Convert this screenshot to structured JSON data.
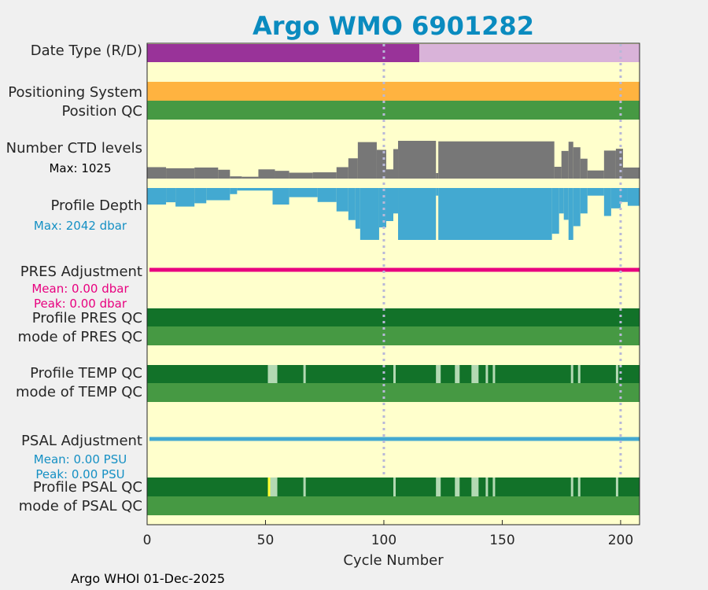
{
  "chart_data": {
    "type": "table",
    "title": "Argo WMO 6901282",
    "xlabel": "Cycle Number",
    "xlim": [
      0,
      208
    ],
    "x_ticks": [
      "0",
      "50",
      "100",
      "150",
      "200"
    ],
    "x_tick_values": [
      0,
      50,
      100,
      150,
      200
    ],
    "gridlines_x": [
      100,
      200
    ],
    "footer": "Argo WHOI 01-Dec-2025",
    "rows": [
      {
        "label": "Date Type (R/D)",
        "segments": [
          {
            "from": 0,
            "to": 115,
            "color": "#993399",
            "meaning": "R"
          },
          {
            "from": 115,
            "to": 208,
            "color": "#d9b3d9",
            "meaning": "D"
          }
        ]
      },
      {
        "label": "Positioning System",
        "segments": [
          {
            "from": 0,
            "to": 208,
            "color": "#ffb340"
          }
        ]
      },
      {
        "label": "Position QC",
        "segments": [
          {
            "from": 0,
            "to": 208,
            "color": "#469943"
          }
        ]
      },
      {
        "label": "Number CTD levels",
        "note": "Max: 1025",
        "max": 1025,
        "color": "#777777",
        "profile": [
          {
            "from": 0,
            "to": 8,
            "value": 310
          },
          {
            "from": 8,
            "to": 20,
            "value": 280
          },
          {
            "from": 20,
            "to": 30,
            "value": 300
          },
          {
            "from": 30,
            "to": 35,
            "value": 240
          },
          {
            "from": 35,
            "to": 40,
            "value": 60
          },
          {
            "from": 40,
            "to": 47,
            "value": 50
          },
          {
            "from": 47,
            "to": 54,
            "value": 250
          },
          {
            "from": 54,
            "to": 60,
            "value": 210
          },
          {
            "from": 60,
            "to": 70,
            "value": 160
          },
          {
            "from": 70,
            "to": 80,
            "value": 170
          },
          {
            "from": 80,
            "to": 85,
            "value": 310
          },
          {
            "from": 85,
            "to": 89,
            "value": 550
          },
          {
            "from": 89,
            "to": 97,
            "value": 990
          },
          {
            "from": 97,
            "to": 101,
            "value": 780
          },
          {
            "from": 101,
            "to": 104,
            "value": 250
          },
          {
            "from": 104,
            "to": 106,
            "value": 800
          },
          {
            "from": 106,
            "to": 122,
            "value": 1025
          },
          {
            "from": 122,
            "to": 123,
            "value": 150
          },
          {
            "from": 123,
            "to": 172,
            "value": 1010
          },
          {
            "from": 172,
            "to": 175,
            "value": 320
          },
          {
            "from": 175,
            "to": 178,
            "value": 750
          },
          {
            "from": 178,
            "to": 180,
            "value": 1000
          },
          {
            "from": 180,
            "to": 183,
            "value": 850
          },
          {
            "from": 183,
            "to": 186,
            "value": 540
          },
          {
            "from": 186,
            "to": 193,
            "value": 220
          },
          {
            "from": 193,
            "to": 198,
            "value": 760
          },
          {
            "from": 198,
            "to": 201,
            "value": 810
          },
          {
            "from": 201,
            "to": 208,
            "value": 300
          }
        ]
      },
      {
        "label": "Profile Depth",
        "note": "Max: 2042 dbar",
        "max": 2042,
        "color": "#43a9d1",
        "profile": [
          {
            "from": 0,
            "to": 8,
            "value": 650
          },
          {
            "from": 8,
            "to": 12,
            "value": 560
          },
          {
            "from": 12,
            "to": 20,
            "value": 730
          },
          {
            "from": 20,
            "to": 25,
            "value": 600
          },
          {
            "from": 25,
            "to": 35,
            "value": 480
          },
          {
            "from": 35,
            "to": 38,
            "value": 240
          },
          {
            "from": 38,
            "to": 53,
            "value": 100
          },
          {
            "from": 53,
            "to": 60,
            "value": 650
          },
          {
            "from": 60,
            "to": 72,
            "value": 360
          },
          {
            "from": 72,
            "to": 80,
            "value": 550
          },
          {
            "from": 80,
            "to": 85,
            "value": 920
          },
          {
            "from": 85,
            "to": 88,
            "value": 1260
          },
          {
            "from": 88,
            "to": 90,
            "value": 1600
          },
          {
            "from": 90,
            "to": 98,
            "value": 2040
          },
          {
            "from": 98,
            "to": 101,
            "value": 1550
          },
          {
            "from": 101,
            "to": 104,
            "value": 1300
          },
          {
            "from": 104,
            "to": 106,
            "value": 1000
          },
          {
            "from": 106,
            "to": 122,
            "value": 2042
          },
          {
            "from": 122,
            "to": 123,
            "value": 300
          },
          {
            "from": 123,
            "to": 171,
            "value": 2042
          },
          {
            "from": 171,
            "to": 174,
            "value": 1800
          },
          {
            "from": 174,
            "to": 176,
            "value": 1000
          },
          {
            "from": 176,
            "to": 178,
            "value": 1250
          },
          {
            "from": 178,
            "to": 180,
            "value": 2042
          },
          {
            "from": 180,
            "to": 183,
            "value": 1500
          },
          {
            "from": 183,
            "to": 186,
            "value": 1000
          },
          {
            "from": 186,
            "to": 193,
            "value": 300
          },
          {
            "from": 193,
            "to": 196,
            "value": 1100
          },
          {
            "from": 196,
            "to": 200,
            "value": 800
          },
          {
            "from": 200,
            "to": 203,
            "value": 550
          },
          {
            "from": 203,
            "to": 208,
            "value": 700
          }
        ]
      },
      {
        "label": "PRES Adjustment",
        "color": "#e8007f",
        "adjustment_line": true,
        "notes": [
          "Mean: 0.00 dbar",
          "Peak: 0.00 dbar"
        ],
        "mean": 0.0,
        "peak": 0.0,
        "units": "dbar"
      },
      {
        "label": "Profile PRES QC",
        "segments": [
          {
            "from": 0,
            "to": 208,
            "color": "#127229"
          }
        ]
      },
      {
        "label": "mode of PRES QC",
        "segments": [
          {
            "from": 0,
            "to": 208,
            "color": "#469943"
          }
        ]
      },
      {
        "label": "Profile TEMP QC",
        "base": "#127229",
        "marks_color": "#b3d9b3",
        "marks": [
          [
            51,
            55
          ],
          [
            66,
            67
          ],
          [
            104,
            105
          ],
          [
            122,
            124
          ],
          [
            130,
            132
          ],
          [
            137,
            140
          ],
          [
            143,
            144
          ],
          [
            146,
            147
          ],
          [
            179,
            180
          ],
          [
            182,
            183
          ],
          [
            198,
            199
          ]
        ]
      },
      {
        "label": "mode of TEMP QC",
        "segments": [
          {
            "from": 0,
            "to": 208,
            "color": "#469943"
          }
        ]
      },
      {
        "label": "PSAL Adjustment",
        "color": "#43a9d1",
        "adjustment_line": true,
        "notes": [
          "Mean: 0.00 PSU",
          "Peak: 0.00 PSU"
        ],
        "mean": 0.0,
        "peak": 0.0,
        "units": "PSU"
      },
      {
        "label": "Profile PSAL QC",
        "base": "#127229",
        "marks_color": "#b3d9b3",
        "marks": [
          [
            52,
            55
          ],
          [
            66,
            67
          ],
          [
            104,
            105
          ],
          [
            122,
            124
          ],
          [
            130,
            132
          ],
          [
            137,
            140
          ],
          [
            143,
            144
          ],
          [
            146,
            147
          ],
          [
            179,
            180
          ],
          [
            182,
            183
          ],
          [
            198,
            199
          ]
        ],
        "highlight": {
          "from": 51,
          "to": 52,
          "color": "#ffff33"
        }
      },
      {
        "label": "mode of PSAL QC",
        "segments": [
          {
            "from": 0,
            "to": 208,
            "color": "#469943"
          }
        ]
      }
    ]
  }
}
